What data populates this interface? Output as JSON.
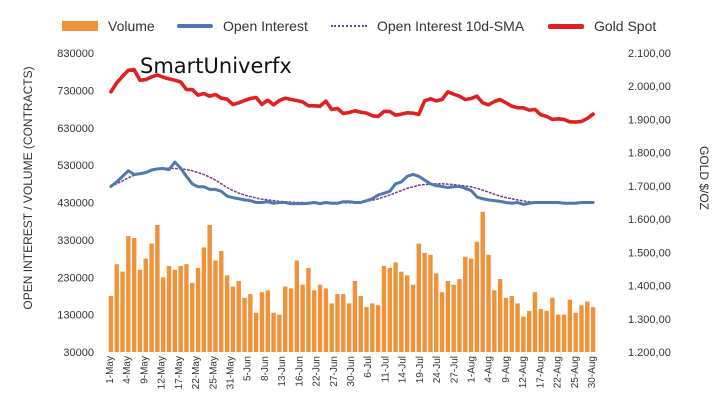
{
  "chart_data": {
    "type": "bar+line",
    "watermark": "SmartUniverfx",
    "ylabel_left": "OPEN INTEREST / VOLUME (CONTRACTS)",
    "ylabel_right": "GOLD $/OZ",
    "left_axis": {
      "min": 30000,
      "max": 830000,
      "ticks": [
        "830000",
        "730000",
        "630000",
        "530000",
        "430000",
        "330000",
        "230000",
        "130000",
        "30000"
      ]
    },
    "right_axis": {
      "min": 1200,
      "max": 2100,
      "ticks": [
        "2.100,00",
        "2.000,00",
        "1.900,00",
        "1.800,00",
        "1.700,00",
        "1.600,00",
        "1.500,00",
        "1.400,00",
        "1.300,00",
        "1.200,00"
      ]
    },
    "x_ticks": [
      "1-May",
      "4-May",
      "9-May",
      "12-May",
      "17-May",
      "22-May",
      "25-May",
      "31-May",
      "5-Jun",
      "8-Jun",
      "13-Jun",
      "16-Jun",
      "22-Jun",
      "27-Jun",
      "30-Jun",
      "6-Jul",
      "11-Jul",
      "14-Jul",
      "19-Jul",
      "24-Jul",
      "27-Jul",
      "1-Aug",
      "4-Aug",
      "9-Aug",
      "12-Aug",
      "17-Aug",
      "22-Aug",
      "25-Aug",
      "30-Aug"
    ],
    "n_points": 84,
    "legend": [
      {
        "label": "Volume",
        "color": "#f0923a",
        "kind": "bar"
      },
      {
        "label": "Open Interest",
        "color": "#4e79b0",
        "kind": "line"
      },
      {
        "label": "Open Interest 10d-SMA",
        "color": "#7b3f8c",
        "kind": "dotted"
      },
      {
        "label": "Gold Spot",
        "color": "#e02020",
        "kind": "line"
      }
    ],
    "series": [
      {
        "name": "Volume",
        "axis": "left",
        "values": [
          180000,
          265000,
          245000,
          340000,
          335000,
          250000,
          280000,
          320000,
          370000,
          230000,
          260000,
          250000,
          260000,
          265000,
          215000,
          255000,
          310000,
          370000,
          275000,
          300000,
          235000,
          205000,
          220000,
          175000,
          185000,
          135000,
          190000,
          195000,
          135000,
          130000,
          205000,
          200000,
          275000,
          210000,
          255000,
          195000,
          210000,
          200000,
          160000,
          185000,
          185000,
          160000,
          220000,
          180000,
          150000,
          160000,
          155000,
          260000,
          255000,
          270000,
          245000,
          235000,
          210000,
          320000,
          295000,
          290000,
          240000,
          190000,
          220000,
          210000,
          225000,
          285000,
          280000,
          325000,
          405000,
          290000,
          195000,
          225000,
          175000,
          180000,
          160000,
          125000,
          140000,
          190000,
          145000,
          140000,
          175000,
          130000,
          130000,
          170000,
          135000,
          155000,
          165000,
          150000
        ]
      },
      {
        "name": "Open Interest",
        "axis": "left",
        "values": [
          473000,
          485000,
          500000,
          515000,
          505000,
          507000,
          510000,
          517000,
          520000,
          521000,
          518000,
          538000,
          522000,
          500000,
          480000,
          472000,
          472000,
          465000,
          465000,
          460000,
          447000,
          443000,
          440000,
          437000,
          435000,
          430000,
          430000,
          432000,
          428000,
          430000,
          430000,
          427000,
          427000,
          427000,
          428000,
          430000,
          427000,
          430000,
          428000,
          428000,
          432000,
          432000,
          430000,
          430000,
          435000,
          440000,
          450000,
          455000,
          460000,
          480000,
          485000,
          500000,
          505000,
          500000,
          490000,
          480000,
          475000,
          473000,
          470000,
          472000,
          473000,
          468000,
          462000,
          445000,
          440000,
          437000,
          435000,
          433000,
          430000,
          428000,
          430000,
          425000,
          428000,
          430000,
          430000,
          430000,
          430000,
          430000,
          428000,
          428000,
          428000,
          430000,
          430000,
          430000
        ]
      },
      {
        "name": "Open Interest 10d-SMA",
        "axis": "left",
        "values": [
          475000,
          480000,
          488000,
          496000,
          503000,
          508000,
          512000,
          516000,
          520000,
          522000,
          522000,
          521000,
          520000,
          518000,
          515000,
          510000,
          505000,
          498000,
          490000,
          480000,
          470000,
          462000,
          455000,
          450000,
          446000,
          442000,
          439000,
          437000,
          435000,
          433000,
          432000,
          431000,
          430000,
          430000,
          429000,
          429000,
          429000,
          429000,
          429000,
          429000,
          429000,
          429000,
          430000,
          431000,
          433000,
          436000,
          440000,
          445000,
          450000,
          456000,
          462000,
          468000,
          472000,
          476000,
          478000,
          479000,
          480000,
          480000,
          479000,
          478000,
          476000,
          474000,
          472000,
          468000,
          463000,
          458000,
          452000,
          447000,
          443000,
          440000,
          437000,
          434000,
          432000,
          431000,
          430000,
          430000,
          430000,
          430000,
          430000,
          429000,
          429000,
          429000,
          429000,
          429000
        ]
      },
      {
        "name": "Gold Spot",
        "axis": "right",
        "values": [
          1983,
          2010,
          2030,
          2048,
          2050,
          2018,
          2020,
          2028,
          2034,
          2027,
          2022,
          2018,
          2013,
          1990,
          1990,
          1973,
          1978,
          1970,
          1975,
          1964,
          1961,
          1945,
          1950,
          1957,
          1963,
          1966,
          1945,
          1958,
          1944,
          1957,
          1964,
          1960,
          1957,
          1953,
          1941,
          1941,
          1940,
          1955,
          1930,
          1933,
          1918,
          1921,
          1926,
          1922,
          1919,
          1911,
          1909,
          1924,
          1924,
          1913,
          1916,
          1920,
          1919,
          1915,
          1956,
          1962,
          1956,
          1960,
          1983,
          1976,
          1970,
          1960,
          1963,
          1970,
          1950,
          1944,
          1954,
          1960,
          1950,
          1940,
          1935,
          1935,
          1928,
          1930,
          1914,
          1909,
          1900,
          1902,
          1900,
          1893,
          1892,
          1894,
          1903,
          1916
        ]
      }
    ]
  }
}
